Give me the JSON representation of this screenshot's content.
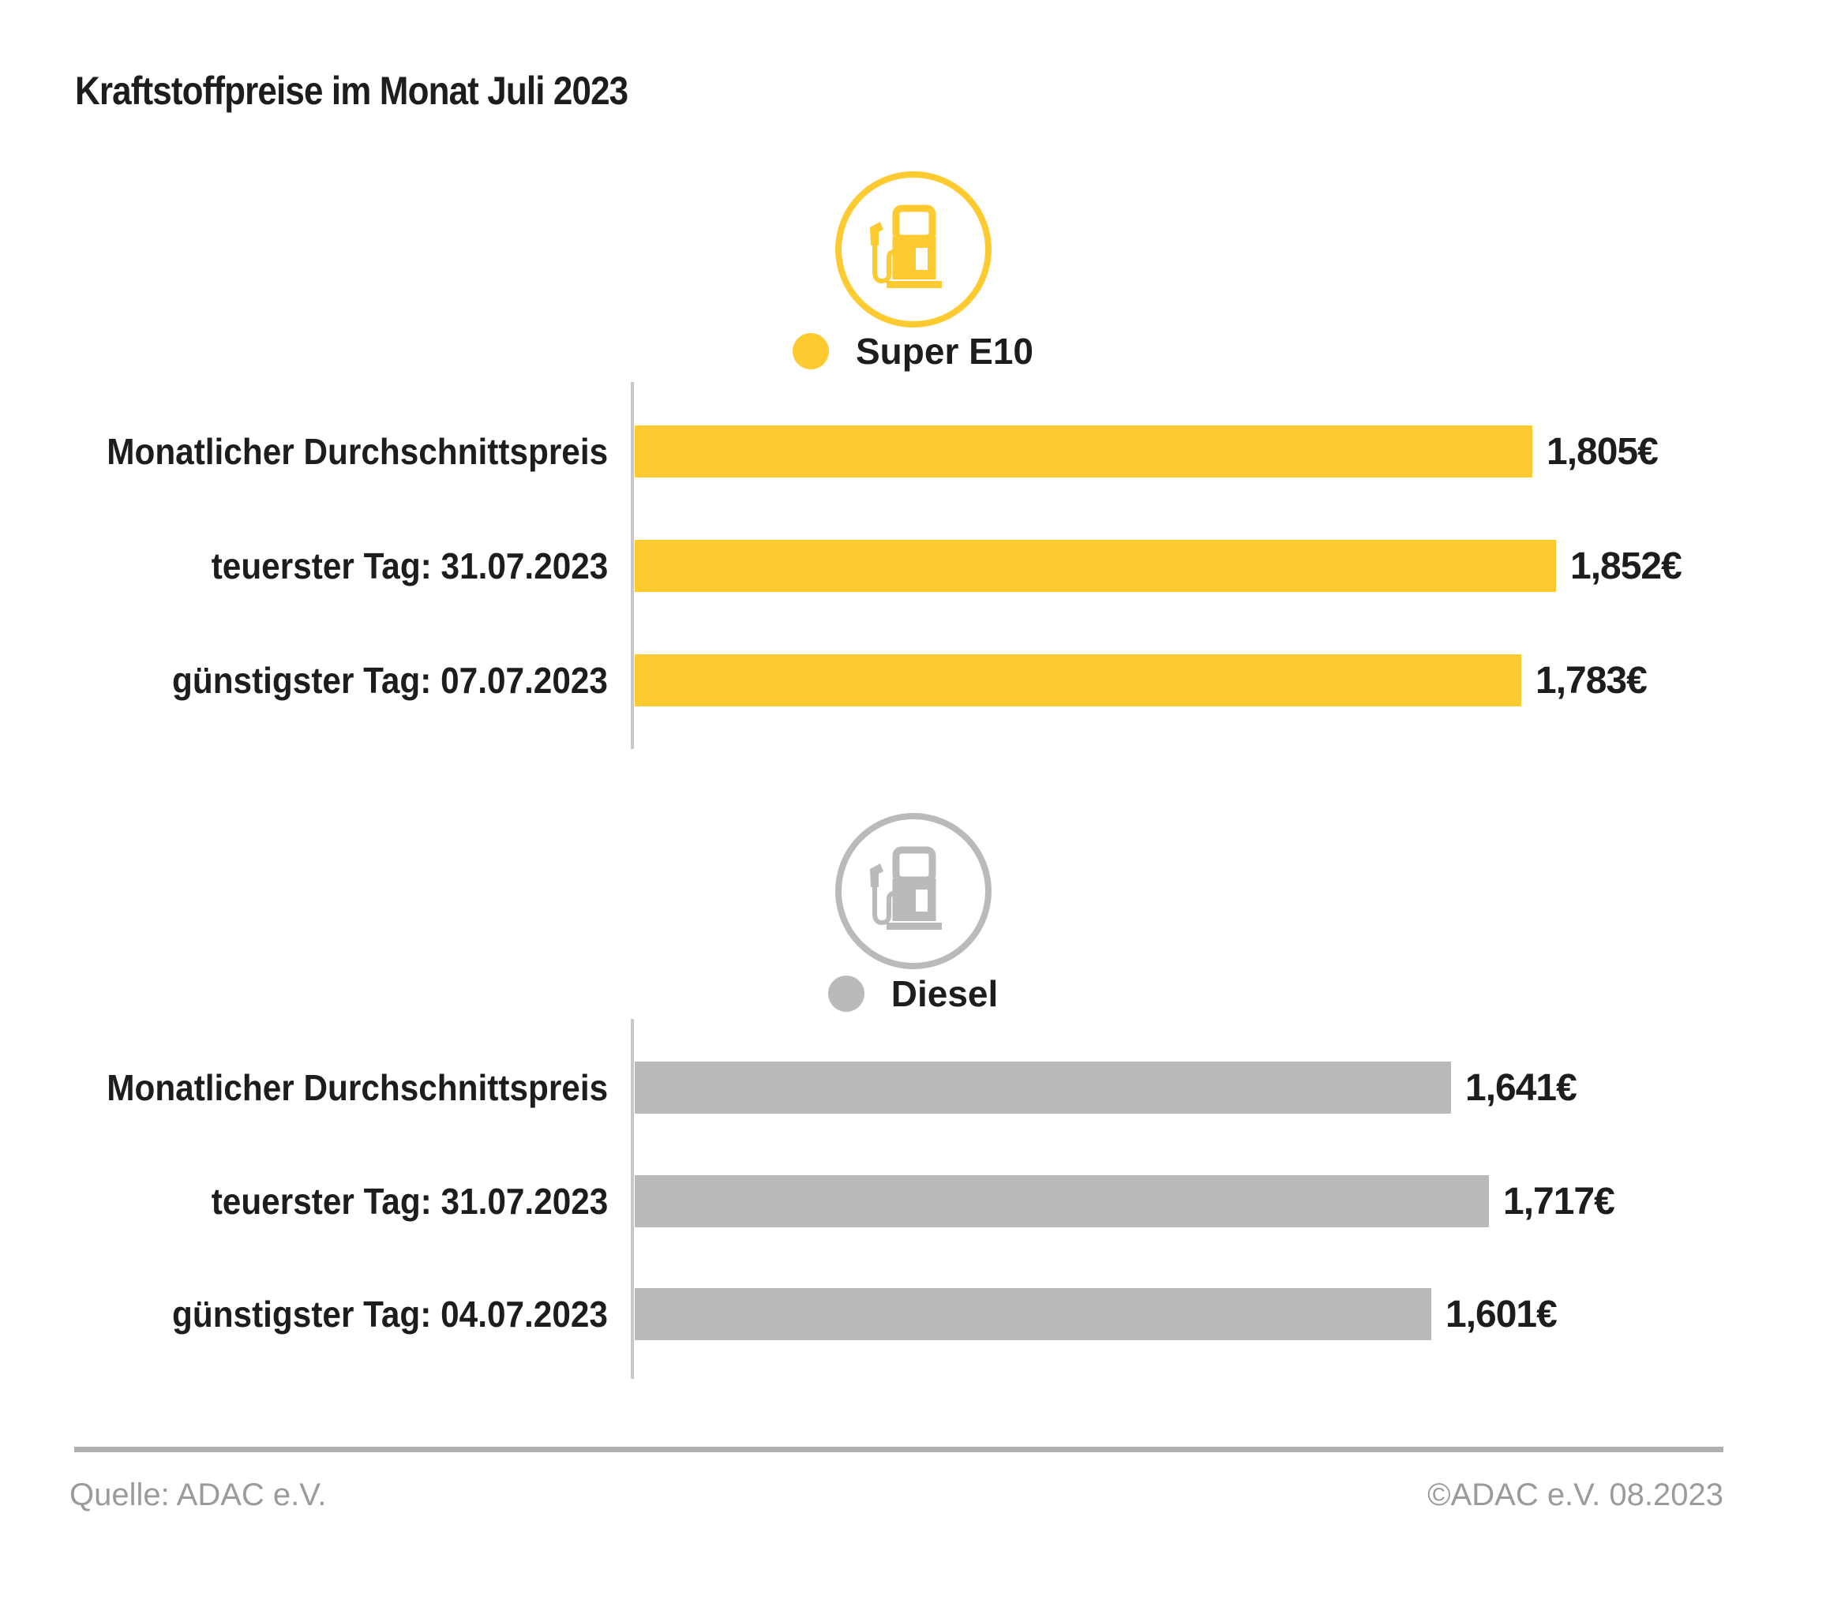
{
  "title": "Kraftstoffpreise im Monat Juli 2023",
  "footer": {
    "source": "Quelle: ADAC e.V.",
    "copyright": "©ADAC e.V. 08.2023"
  },
  "colors": {
    "super_e10_yellow": "#FDCA30",
    "diesel_gray": "#BBB9BA",
    "axis_gray": "#C9C7C8",
    "text_dark": "#1D1D1B",
    "footer_gray": "#9C9A9B"
  },
  "chart_data": [
    {
      "type": "bar",
      "orientation": "horizontal",
      "group": "Super E10",
      "icon": "fuel-pump-icon",
      "bar_color": "#FDCA30",
      "categories": [
        "Monatlicher Durchschnittspreis",
        "teuerster Tag: 31.07.2023",
        "günstigster Tag: 07.07.2023"
      ],
      "values": [
        1.805,
        1.852,
        1.783
      ],
      "value_labels": [
        "1,805€",
        "1,852€",
        "1,783€"
      ],
      "xlim": [
        0,
        2.0
      ],
      "gridlines": false,
      "tick_labels": false,
      "legend": {
        "label": "Super E10",
        "dot_color": "#FDCA30",
        "position": "top-center"
      }
    },
    {
      "type": "bar",
      "orientation": "horizontal",
      "group": "Diesel",
      "icon": "fuel-pump-icon",
      "bar_color": "#BBB9BA",
      "categories": [
        "Monatlicher Durchschnittspreis",
        "teuerster Tag: 31.07.2023",
        "günstigster Tag: 04.07.2023"
      ],
      "values": [
        1.641,
        1.717,
        1.601
      ],
      "value_labels": [
        "1,641€",
        "1,717€",
        "1,601€"
      ],
      "xlim": [
        0,
        2.0
      ],
      "gridlines": false,
      "tick_labels": false,
      "legend": {
        "label": "Diesel",
        "dot_color": "#BBB9BA",
        "position": "top-center"
      }
    }
  ]
}
